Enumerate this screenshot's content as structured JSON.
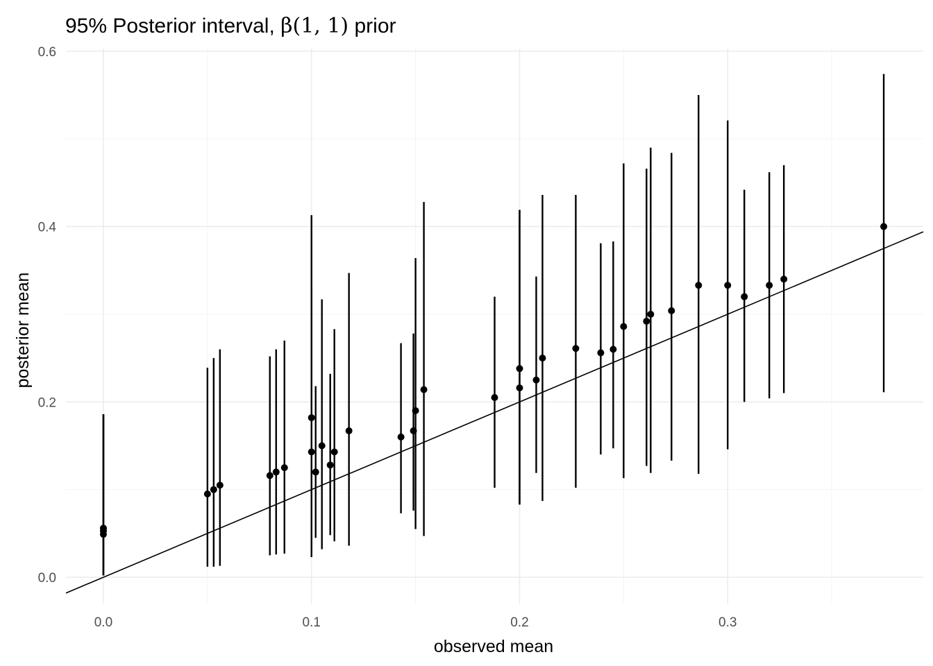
{
  "chart_data": {
    "type": "scatter",
    "title_parts": {
      "prefix": "95% Posterior interval, ",
      "beta": "β",
      "args": "(1, 1)",
      "suffix": " prior"
    },
    "title": "95% Posterior interval, β(1, 1) prior",
    "xlabel": "observed mean",
    "ylabel": "posterior mean",
    "xlim": [
      -0.018,
      0.394
    ],
    "ylim": [
      -0.03,
      0.603
    ],
    "x_ticks": [
      0.0,
      0.1,
      0.2,
      0.3
    ],
    "x_tick_labels": [
      "0.0",
      "0.1",
      "0.2",
      "0.3"
    ],
    "y_ticks": [
      0.0,
      0.2,
      0.4,
      0.6
    ],
    "y_tick_labels": [
      "0.0",
      "0.2",
      "0.4",
      "0.6"
    ],
    "grid": true,
    "reference_line": {
      "slope": 1,
      "intercept": 0
    },
    "series": [
      {
        "points": [
          {
            "x": 0.0,
            "y": 0.056,
            "lo": 0.002,
            "hi": 0.186
          },
          {
            "x": 0.0,
            "y": 0.053,
            "lo": 0.002,
            "hi": 0.186
          },
          {
            "x": 0.0,
            "y": 0.049,
            "lo": 0.002,
            "hi": 0.186
          },
          {
            "x": 0.05,
            "y": 0.095,
            "lo": 0.012,
            "hi": 0.239
          },
          {
            "x": 0.053,
            "y": 0.1,
            "lo": 0.012,
            "hi": 0.25
          },
          {
            "x": 0.056,
            "y": 0.105,
            "lo": 0.013,
            "hi": 0.26
          },
          {
            "x": 0.08,
            "y": 0.116,
            "lo": 0.025,
            "hi": 0.252
          },
          {
            "x": 0.083,
            "y": 0.12,
            "lo": 0.026,
            "hi": 0.26
          },
          {
            "x": 0.087,
            "y": 0.125,
            "lo": 0.027,
            "hi": 0.27
          },
          {
            "x": 0.1,
            "y": 0.182,
            "lo": 0.023,
            "hi": 0.413
          },
          {
            "x": 0.1,
            "y": 0.143,
            "lo": 0.03,
            "hi": 0.33
          },
          {
            "x": 0.102,
            "y": 0.12,
            "lo": 0.045,
            "hi": 0.218
          },
          {
            "x": 0.105,
            "y": 0.15,
            "lo": 0.032,
            "hi": 0.317
          },
          {
            "x": 0.109,
            "y": 0.128,
            "lo": 0.048,
            "hi": 0.232
          },
          {
            "x": 0.111,
            "y": 0.143,
            "lo": 0.041,
            "hi": 0.283
          },
          {
            "x": 0.118,
            "y": 0.167,
            "lo": 0.036,
            "hi": 0.347
          },
          {
            "x": 0.143,
            "y": 0.16,
            "lo": 0.073,
            "hi": 0.267
          },
          {
            "x": 0.149,
            "y": 0.167,
            "lo": 0.076,
            "hi": 0.278
          },
          {
            "x": 0.15,
            "y": 0.19,
            "lo": 0.055,
            "hi": 0.364
          },
          {
            "x": 0.154,
            "y": 0.214,
            "lo": 0.047,
            "hi": 0.428
          },
          {
            "x": 0.188,
            "y": 0.205,
            "lo": 0.102,
            "hi": 0.32
          },
          {
            "x": 0.2,
            "y": 0.238,
            "lo": 0.083,
            "hi": 0.419
          },
          {
            "x": 0.2,
            "y": 0.216,
            "lo": 0.083,
            "hi": 0.419
          },
          {
            "x": 0.208,
            "y": 0.225,
            "lo": 0.119,
            "hi": 0.343
          },
          {
            "x": 0.211,
            "y": 0.25,
            "lo": 0.087,
            "hi": 0.436
          },
          {
            "x": 0.227,
            "y": 0.261,
            "lo": 0.102,
            "hi": 0.436
          },
          {
            "x": 0.239,
            "y": 0.256,
            "lo": 0.14,
            "hi": 0.381
          },
          {
            "x": 0.245,
            "y": 0.26,
            "lo": 0.147,
            "hi": 0.383
          },
          {
            "x": 0.25,
            "y": 0.286,
            "lo": 0.113,
            "hi": 0.472
          },
          {
            "x": 0.261,
            "y": 0.292,
            "lo": 0.127,
            "hi": 0.466
          },
          {
            "x": 0.263,
            "y": 0.3,
            "lo": 0.119,
            "hi": 0.49
          },
          {
            "x": 0.273,
            "y": 0.304,
            "lo": 0.133,
            "hi": 0.484
          },
          {
            "x": 0.286,
            "y": 0.333,
            "lo": 0.118,
            "hi": 0.55
          },
          {
            "x": 0.3,
            "y": 0.333,
            "lo": 0.146,
            "hi": 0.521
          },
          {
            "x": 0.308,
            "y": 0.32,
            "lo": 0.2,
            "hi": 0.442
          },
          {
            "x": 0.32,
            "y": 0.333,
            "lo": 0.204,
            "hi": 0.462
          },
          {
            "x": 0.327,
            "y": 0.34,
            "lo": 0.21,
            "hi": 0.47
          },
          {
            "x": 0.375,
            "y": 0.4,
            "lo": 0.211,
            "hi": 0.574
          }
        ]
      }
    ]
  }
}
